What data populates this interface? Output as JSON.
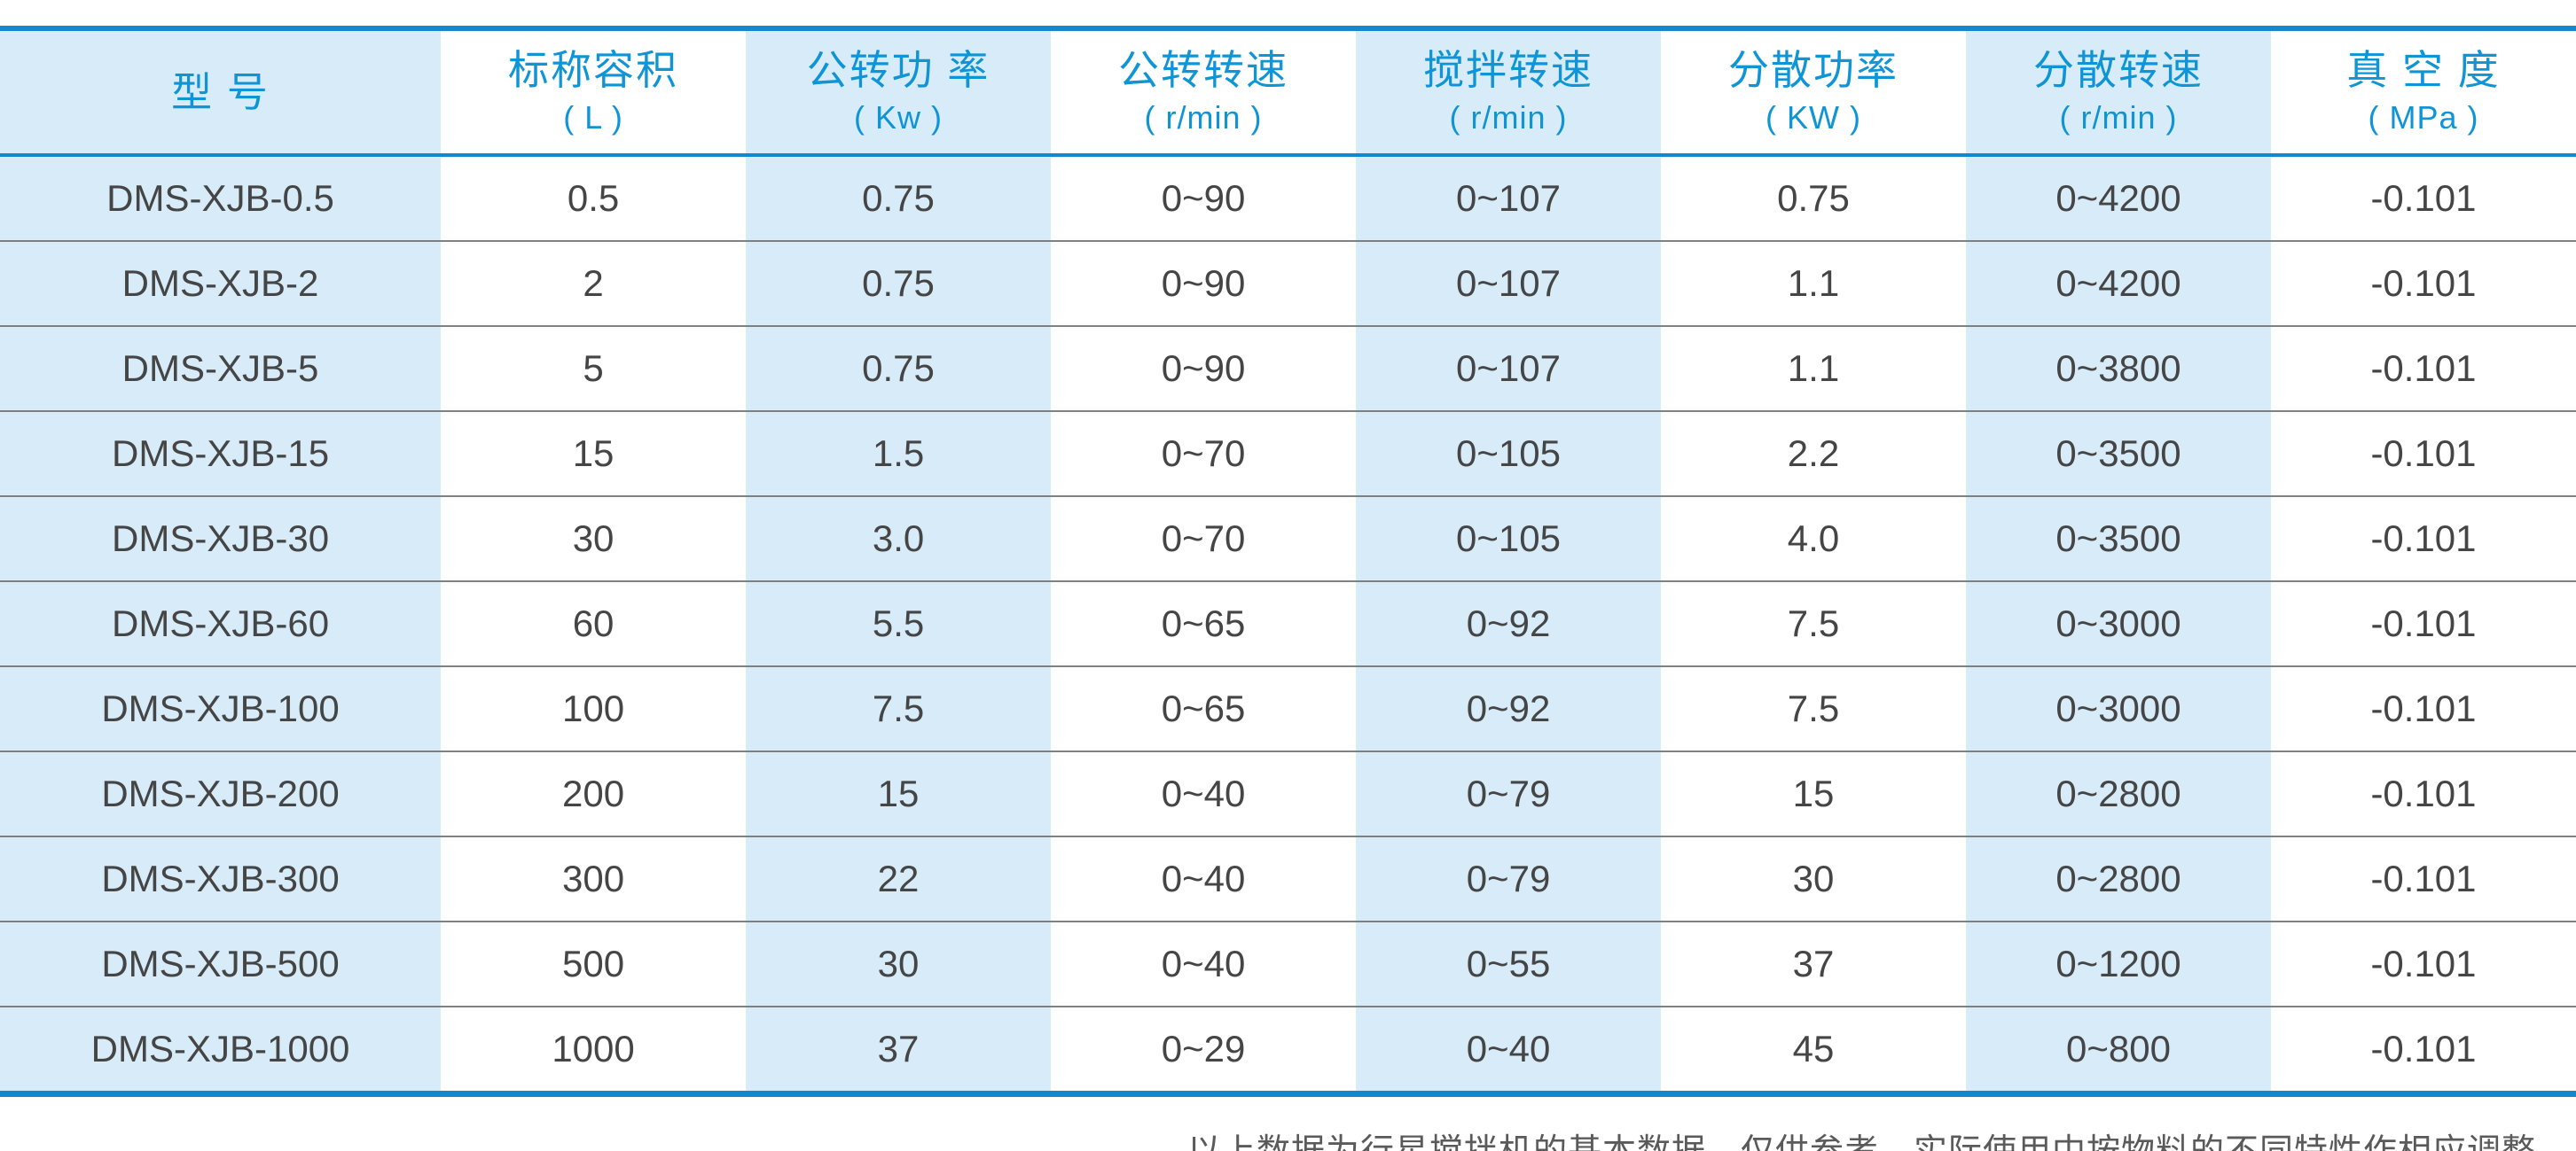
{
  "colors": {
    "accent_border_blue": "#1487ce",
    "header_text_blue": "#0f94d6",
    "striped_cell_blue": "#d7ebf8",
    "data_text_gray": "#454545",
    "row_divider_gray": "#808080",
    "footnote_gray": "#5a5a5a"
  },
  "chart_data": {
    "type": "table",
    "title": "",
    "columns": [
      {
        "label": "型  号",
        "unit": ""
      },
      {
        "label": "标称容积",
        "unit": "( L )"
      },
      {
        "label": "公转功 率",
        "unit": "( Kw )"
      },
      {
        "label": "公转转速",
        "unit": "( r/min )"
      },
      {
        "label": "搅拌转速",
        "unit": "( r/min )"
      },
      {
        "label": "分散功率",
        "unit": "( KW )"
      },
      {
        "label": "分散转速",
        "unit": "( r/min )"
      },
      {
        "label": "真 空 度",
        "unit": "( MPa )"
      }
    ],
    "rows": [
      [
        "DMS-XJB-0.5",
        "0.5",
        "0.75",
        "0~90",
        "0~107",
        "0.75",
        "0~4200",
        "-0.101"
      ],
      [
        "DMS-XJB-2",
        "2",
        "0.75",
        "0~90",
        "0~107",
        "1.1",
        "0~4200",
        "-0.101"
      ],
      [
        "DMS-XJB-5",
        "5",
        "0.75",
        "0~90",
        "0~107",
        "1.1",
        "0~3800",
        "-0.101"
      ],
      [
        "DMS-XJB-15",
        "15",
        "1.5",
        "0~70",
        "0~105",
        "2.2",
        "0~3500",
        "-0.101"
      ],
      [
        "DMS-XJB-30",
        "30",
        "3.0",
        "0~70",
        "0~105",
        "4.0",
        "0~3500",
        "-0.101"
      ],
      [
        "DMS-XJB-60",
        "60",
        "5.5",
        "0~65",
        "0~92",
        "7.5",
        "0~3000",
        "-0.101"
      ],
      [
        "DMS-XJB-100",
        "100",
        "7.5",
        "0~65",
        "0~92",
        "7.5",
        "0~3000",
        "-0.101"
      ],
      [
        "DMS-XJB-200",
        "200",
        "15",
        "0~40",
        "0~79",
        "15",
        "0~2800",
        "-0.101"
      ],
      [
        "DMS-XJB-300",
        "300",
        "22",
        "0~40",
        "0~79",
        "30",
        "0~2800",
        "-0.101"
      ],
      [
        "DMS-XJB-500",
        "500",
        "30",
        "0~40",
        "0~55",
        "37",
        "0~1200",
        "-0.101"
      ],
      [
        "DMS-XJB-1000",
        "1000",
        "37",
        "0~29",
        "0~40",
        "45",
        "0~800",
        "-0.101"
      ]
    ]
  },
  "footer": {
    "note": "以上数据为行星搅拌机的基本数据，仅供参考，实际使用中按物料的不同特性作相应调整。"
  }
}
